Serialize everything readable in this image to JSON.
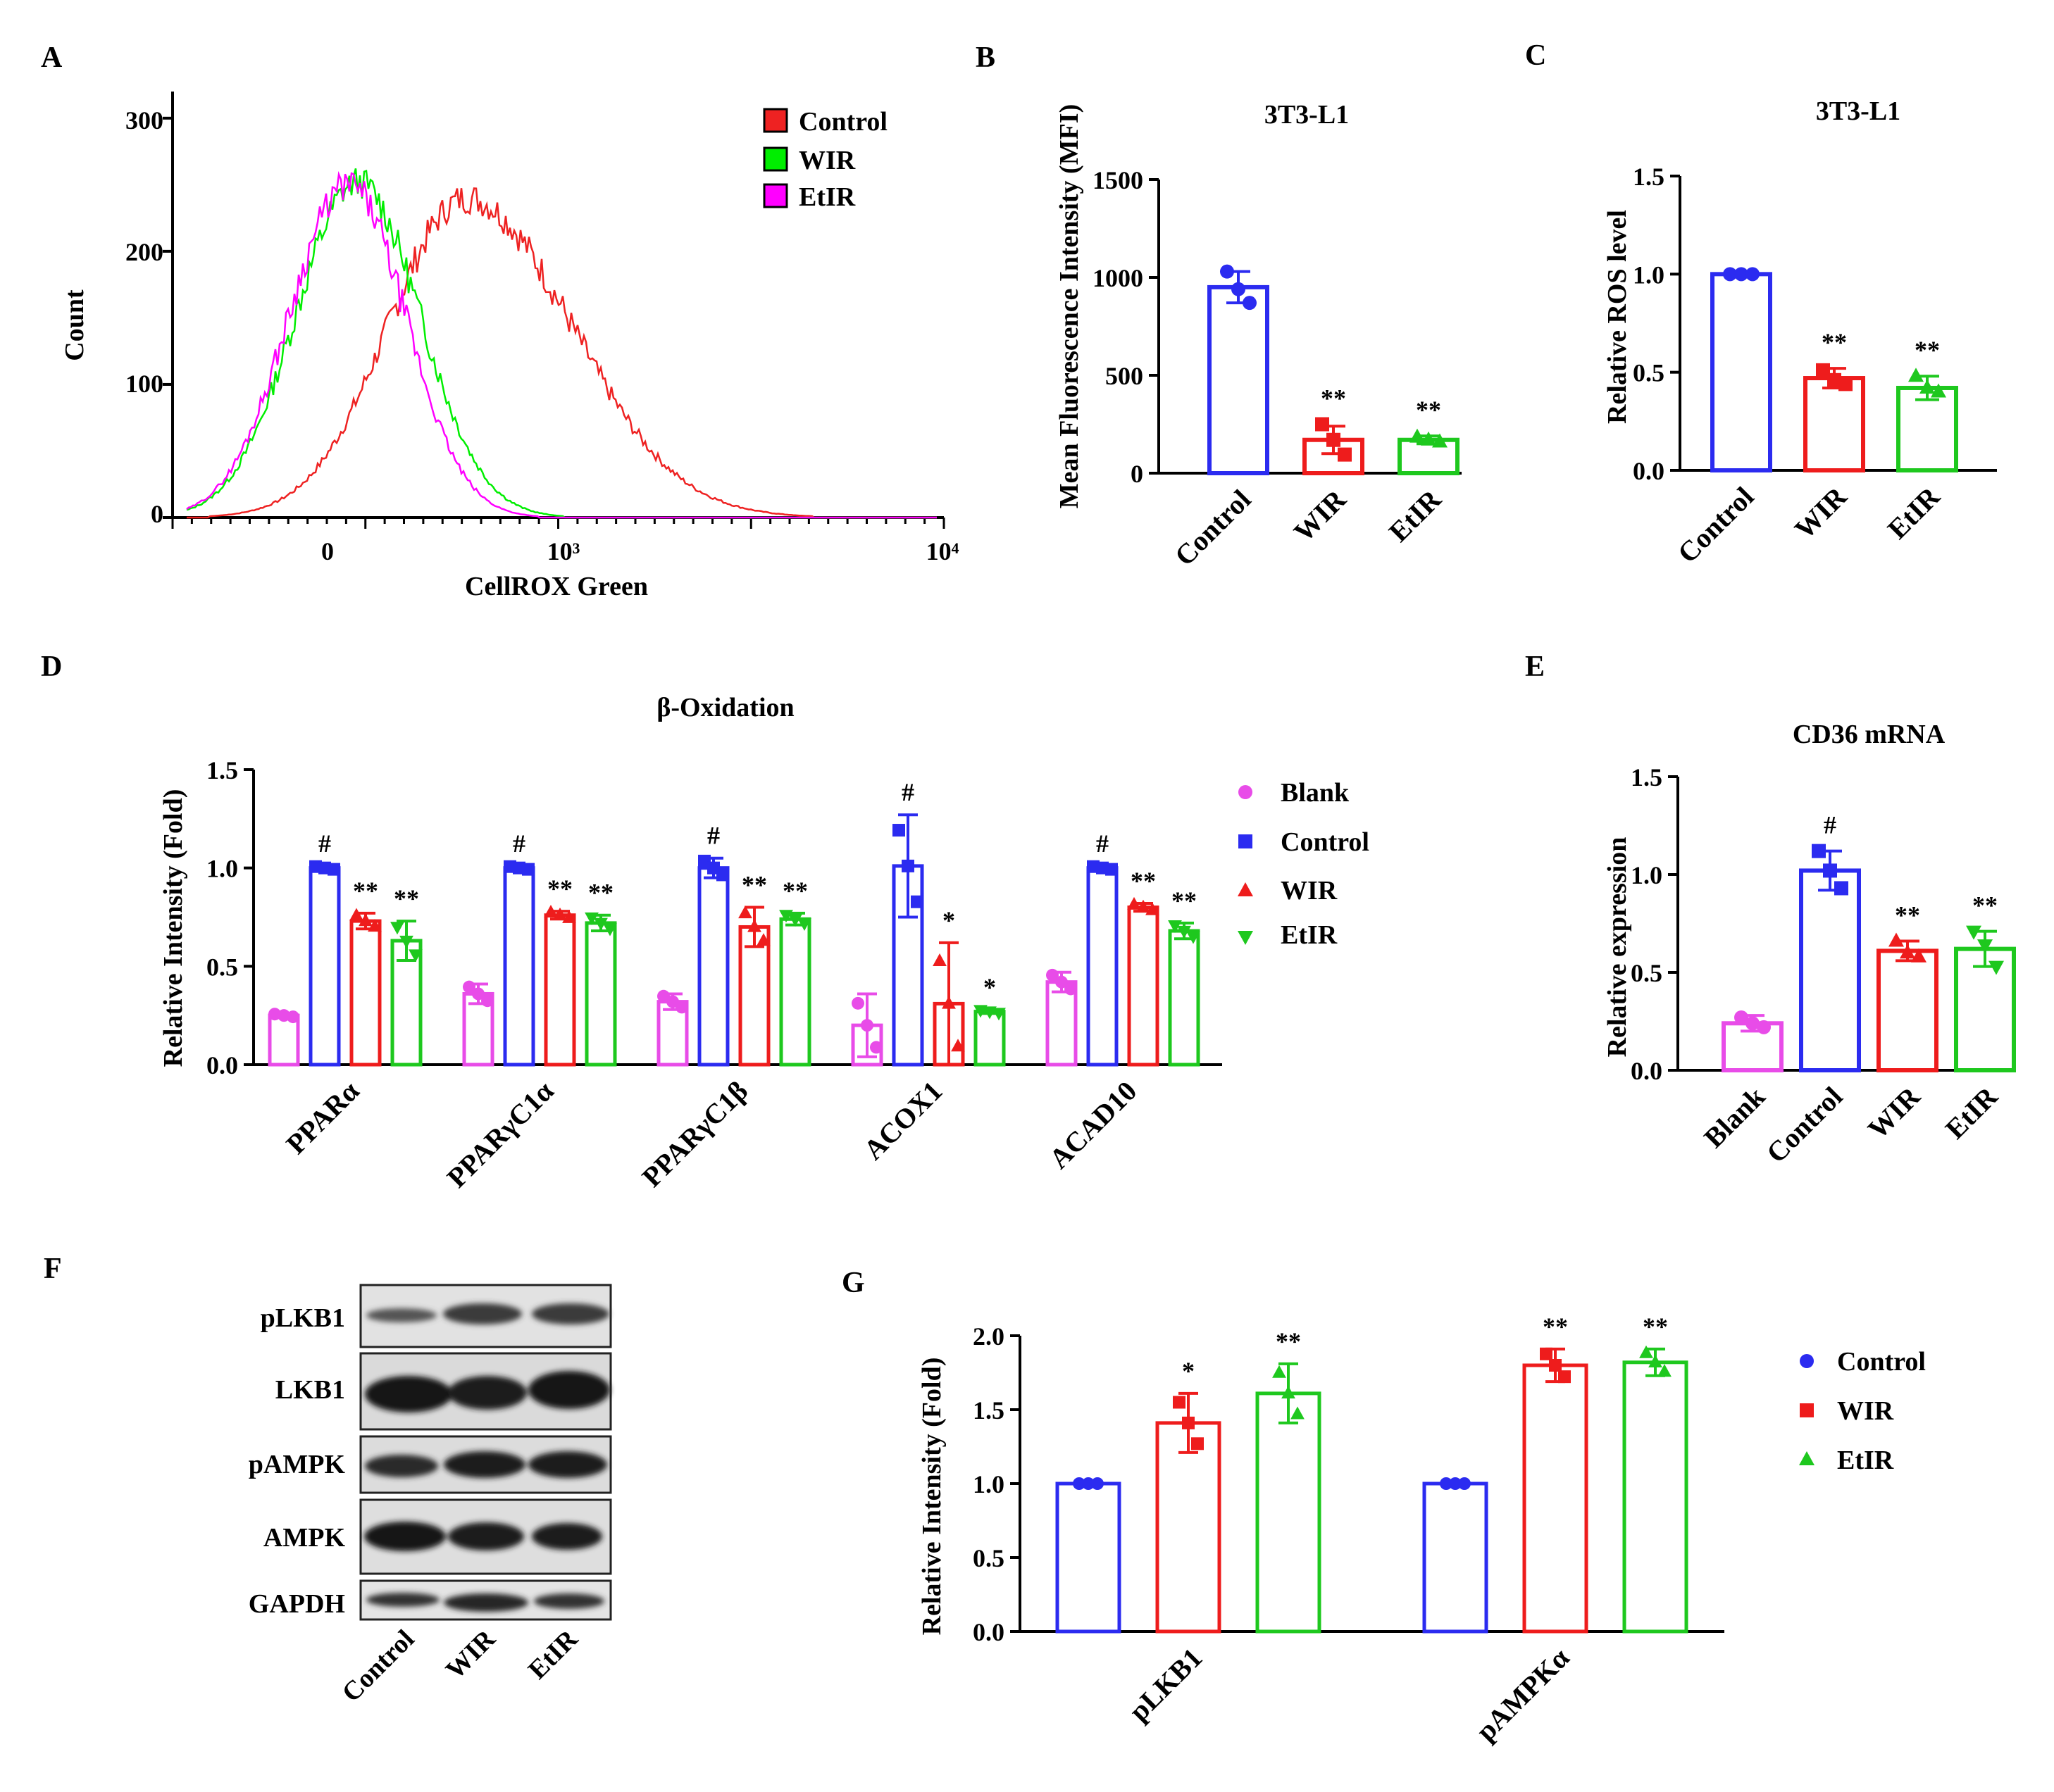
{
  "colors": {
    "magenta": "#e84ce8",
    "blue": "#2b2bf0",
    "red": "#ee1c1c",
    "green": "#1ec81e",
    "hist_magenta": "#ff00ff",
    "hist_green": "#00ee00",
    "hist_red": "#ee2222"
  },
  "panel_letters": {
    "A": "A",
    "B": "B",
    "C": "C",
    "D": "D",
    "E": "E",
    "F": "F",
    "G": "G"
  },
  "chart_data": [
    {
      "id": "A",
      "type": "line",
      "title": "",
      "xlabel": "CellROX Green",
      "ylabel": "Count",
      "xscale": "log",
      "xticks": [
        "0",
        "10³",
        "10⁴"
      ],
      "yticks": [
        "0",
        "100",
        "200",
        "300"
      ],
      "ylim": [
        0,
        320
      ],
      "legend_position": "top-right",
      "series": [
        {
          "name": "Control",
          "color_key": "hist_red",
          "peak_x": "~600",
          "peak_count": 250
        },
        {
          "name": "WIR",
          "color_key": "hist_green",
          "peak_x": "~150",
          "peak_count": 272
        },
        {
          "name": "EtIR",
          "color_key": "hist_magenta",
          "peak_x": "~120",
          "peak_count": 270
        }
      ]
    },
    {
      "id": "B",
      "type": "bar",
      "title": "3T3-L1",
      "ylabel": "Mean Fluorescence Intensity (MFI)",
      "ylim": [
        0,
        1500
      ],
      "yticks": [
        "0",
        "500",
        "1000",
        "1500"
      ],
      "categories": [
        "Control",
        "WIR",
        "EtIR"
      ],
      "color_keys": [
        "blue",
        "red",
        "green"
      ],
      "values": [
        950,
        170,
        170
      ],
      "errors": [
        80,
        70,
        20
      ],
      "points": [
        [
          1030,
          940,
          870
        ],
        [
          250,
          170,
          95
        ],
        [
          185,
          170,
          160
        ]
      ],
      "markers": [
        "circle",
        "square",
        "triangle"
      ],
      "significance": [
        "",
        "**",
        "**"
      ]
    },
    {
      "id": "C",
      "type": "bar",
      "title": "3T3-L1",
      "ylabel": "Relative ROS level",
      "ylim": [
        0,
        1.5
      ],
      "yticks": [
        "0.0",
        "0.5",
        "1.0",
        "1.5"
      ],
      "categories": [
        "Control",
        "WIR",
        "EtIR"
      ],
      "color_keys": [
        "blue",
        "red",
        "green"
      ],
      "values": [
        1.0,
        0.47,
        0.42
      ],
      "errors": [
        0.0,
        0.05,
        0.06
      ],
      "points": [
        [
          1.0,
          1.0,
          1.0
        ],
        [
          0.51,
          0.46,
          0.44
        ],
        [
          0.48,
          0.42,
          0.4
        ]
      ],
      "markers": [
        "circle",
        "square",
        "triangle"
      ],
      "significance": [
        "",
        "**",
        "**"
      ]
    },
    {
      "id": "D",
      "type": "bar",
      "title": "β-Oxidation",
      "ylabel": "Relative Intensity (Fold)",
      "ylim": [
        0,
        1.5
      ],
      "yticks": [
        "0.0",
        "0.5",
        "1.0",
        "1.5"
      ],
      "categories": [
        "PPARα",
        "PPARγC1α",
        "PPARγC1β",
        "ACOX1",
        "ACAD10"
      ],
      "legend_position": "right",
      "series": [
        {
          "name": "Blank",
          "color_key": "magenta",
          "marker": "circle",
          "values": [
            0.25,
            0.36,
            0.32,
            0.2,
            0.42
          ],
          "errors": [
            0.01,
            0.05,
            0.04,
            0.16,
            0.05
          ],
          "significance": [
            "",
            "",
            "",
            "",
            ""
          ]
        },
        {
          "name": "Control",
          "color_key": "blue",
          "marker": "square",
          "values": [
            1.0,
            1.0,
            1.0,
            1.01,
            1.0
          ],
          "errors": [
            0.01,
            0.01,
            0.05,
            0.26,
            0.01
          ],
          "significance": [
            "#",
            "#",
            "#",
            "#",
            "#"
          ]
        },
        {
          "name": "WIR",
          "color_key": "red",
          "marker": "triangle",
          "values": [
            0.73,
            0.76,
            0.7,
            0.31,
            0.8
          ],
          "errors": [
            0.04,
            0.02,
            0.1,
            0.31,
            0.02
          ],
          "significance": [
            "**",
            "**",
            "**",
            "*",
            "**"
          ]
        },
        {
          "name": "EtIR",
          "color_key": "green",
          "marker": "triangle-down",
          "values": [
            0.63,
            0.72,
            0.74,
            0.27,
            0.68
          ],
          "errors": [
            0.1,
            0.04,
            0.03,
            0.01,
            0.04
          ],
          "significance": [
            "**",
            "**",
            "**",
            "*",
            "**"
          ]
        }
      ]
    },
    {
      "id": "E",
      "type": "bar",
      "title": "CD36 mRNA",
      "ylabel": "Relative expression",
      "ylim": [
        0,
        1.5
      ],
      "yticks": [
        "0.0",
        "0.5",
        "1.0",
        "1.5"
      ],
      "categories": [
        "Blank",
        "Control",
        "WIR",
        "EtIR"
      ],
      "color_keys": [
        "magenta",
        "blue",
        "red",
        "green"
      ],
      "values": [
        0.24,
        1.02,
        0.61,
        0.62
      ],
      "errors": [
        0.04,
        0.1,
        0.05,
        0.09
      ],
      "points": [
        [
          0.27,
          0.24,
          0.22
        ],
        [
          1.12,
          1.02,
          0.93
        ],
        [
          0.66,
          0.6,
          0.58
        ],
        [
          0.71,
          0.64,
          0.53
        ]
      ],
      "markers": [
        "circle",
        "square",
        "triangle",
        "triangle-down"
      ],
      "significance": [
        "",
        "#",
        "**",
        "**"
      ]
    },
    {
      "id": "G",
      "type": "bar",
      "title": "",
      "ylabel": "Relative Intensity (Fold)",
      "ylim": [
        0,
        2.0
      ],
      "yticks": [
        "0.0",
        "0.5",
        "1.0",
        "1.5",
        "2.0"
      ],
      "categories": [
        "pLKB1",
        "pAMPKα"
      ],
      "legend_position": "right",
      "series": [
        {
          "name": "Control",
          "color_key": "blue",
          "marker": "circle",
          "values": [
            1.0,
            1.0
          ],
          "errors": [
            0.0,
            0.0
          ],
          "significance": [
            "",
            ""
          ]
        },
        {
          "name": "WIR",
          "color_key": "red",
          "marker": "square",
          "values": [
            1.41,
            1.8
          ],
          "errors": [
            0.2,
            0.11
          ],
          "significance": [
            "*",
            "**"
          ]
        },
        {
          "name": "EtIR",
          "color_key": "green",
          "marker": "triangle",
          "values": [
            1.61,
            1.82
          ],
          "errors": [
            0.2,
            0.09
          ],
          "significance": [
            "**",
            "**"
          ]
        }
      ]
    }
  ],
  "western_blot": {
    "rows": [
      "pLKB1",
      "LKB1",
      "pAMPK",
      "AMPK",
      "GAPDH"
    ],
    "lanes": [
      "Control",
      "WIR",
      "EtIR"
    ]
  }
}
